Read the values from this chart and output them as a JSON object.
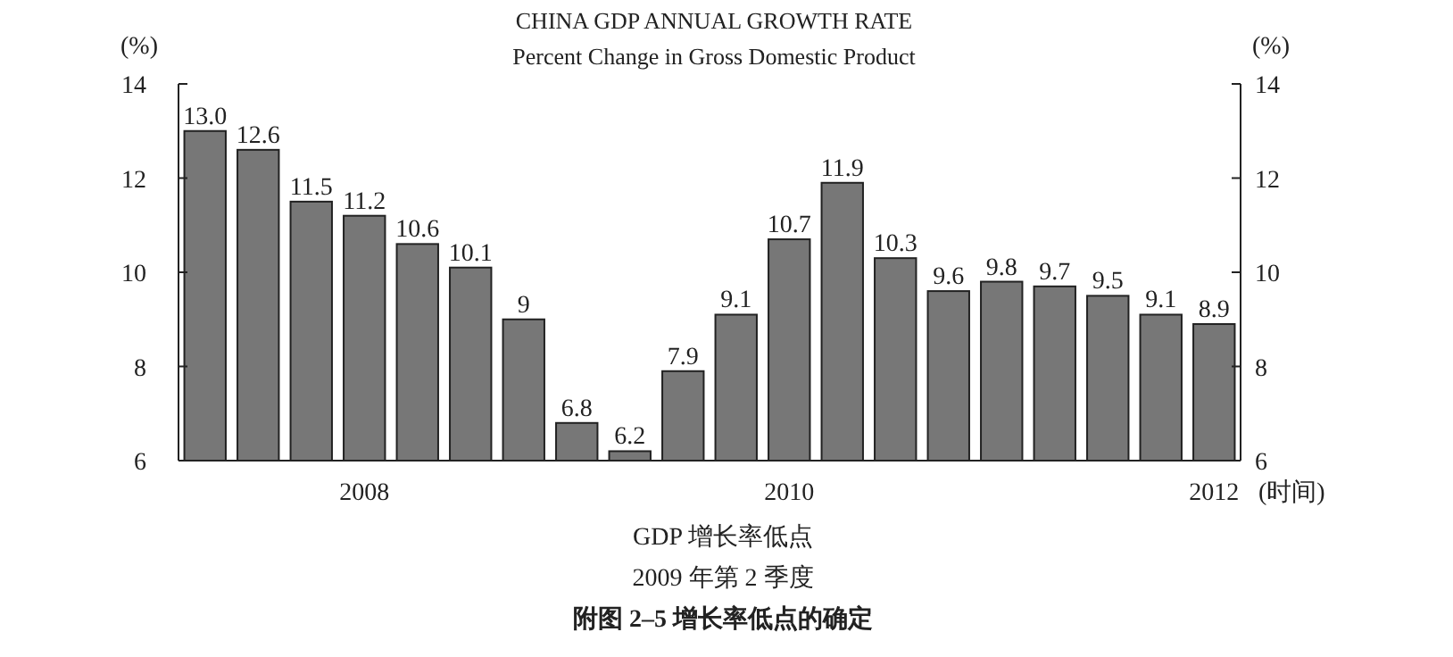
{
  "chart_data": {
    "type": "bar",
    "title": "CHINA GDP ANNUAL GROWTH RATE",
    "subtitle": "Percent Change in Gross Domestic Product",
    "ylabel": "(%)",
    "y2label": "(%)",
    "xlabel": "(时间)",
    "categories": [
      null,
      null,
      null,
      "2008",
      null,
      null,
      null,
      null,
      null,
      null,
      null,
      "2010",
      null,
      null,
      null,
      null,
      null,
      null,
      null,
      "2012"
    ],
    "values": [
      13.0,
      12.6,
      11.5,
      11.2,
      10.6,
      10.1,
      9,
      6.8,
      6.2,
      7.9,
      9.1,
      10.7,
      11.9,
      10.3,
      9.6,
      9.8,
      9.7,
      9.5,
      9.1,
      8.9
    ],
    "value_labels": [
      "13.0",
      "12.6",
      "11.5",
      "11.2",
      "10.6",
      "10.1",
      "9",
      "6.8",
      "6.2",
      "7.9",
      "9.1",
      "10.7",
      "11.9",
      "10.3",
      "9.6",
      "9.8",
      "9.7",
      "9.5",
      "9.1",
      "8.9"
    ],
    "color": "#777777",
    "ylim": [
      6,
      14
    ],
    "yticks": [
      6,
      8,
      10,
      12,
      14
    ],
    "y2lim": [
      6,
      14
    ],
    "y2ticks": [
      6,
      8,
      10,
      12,
      14
    ],
    "grid": false,
    "annotations": [
      "GDP 增长率低点",
      "2009 年第 2 季度",
      "附图 2–5    增长率低点的确定"
    ]
  }
}
